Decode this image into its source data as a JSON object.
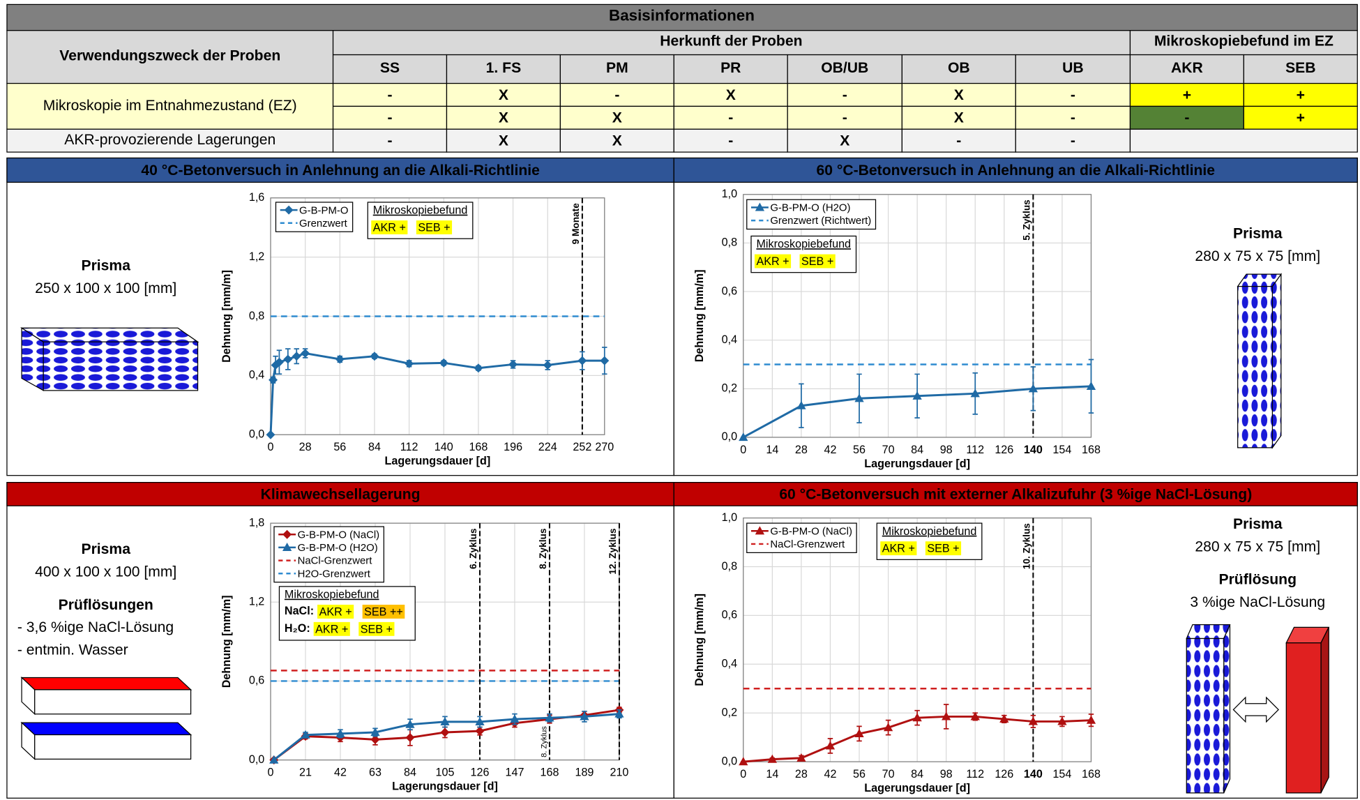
{
  "table": {
    "title": "Basisinformationen",
    "purpose_header": "Verwendungszweck der Proben",
    "origin_header": "Herkunft der Proben",
    "findings_header": "Mikroskopiebefund im EZ",
    "columns": [
      "SS",
      "1. FS",
      "PM",
      "PR",
      "OB/UB",
      "OB",
      "UB",
      "AKR",
      "SEB"
    ],
    "row_groups": [
      {
        "label": "Mikroskopie im Entnahmezustand (EZ)",
        "color": "#ffffcc",
        "rows": [
          [
            "-",
            "X",
            "-",
            "X",
            "-",
            "X",
            "-",
            "+",
            "+"
          ],
          [
            "-",
            "X",
            "X",
            "-",
            "-",
            "X",
            "-",
            "-",
            "+"
          ]
        ],
        "findings_colors": [
          [
            "#ffff00",
            "#ffff00"
          ],
          [
            "#548235",
            "#ffff00"
          ]
        ]
      },
      {
        "label": "AKR-provozierende Lagerungen",
        "color": "#f2f2f2",
        "rows": [
          [
            "-",
            "X",
            "X",
            "-",
            "X",
            "-",
            "-"
          ]
        ]
      }
    ]
  },
  "chart_data": [
    {
      "type": "line",
      "title": "40 °C-Betonversuch in Anlehnung an die Alkali-Richtlinie",
      "band_color": "#2f5597",
      "x_label": "Lagerungsdauer [d]",
      "y_label": "Dehnung [mm/m]",
      "x": [
        0,
        2,
        4,
        7,
        14,
        21,
        28,
        56,
        84,
        112,
        140,
        168,
        196,
        224,
        252,
        270
      ],
      "series": [
        {
          "name": "G-B-PM-O",
          "color": "#1f6aa5",
          "marker": "diamond",
          "values": [
            0,
            0.37,
            0.47,
            0.49,
            0.51,
            0.53,
            0.55,
            0.51,
            0.53,
            0.48,
            0.485,
            0.45,
            0.475,
            0.47,
            0.5,
            0.5
          ],
          "errors": [
            0,
            0.02,
            0.06,
            0.08,
            0.07,
            0.05,
            0.03,
            0.02,
            0.015,
            0.02,
            0.015,
            0.015,
            0.025,
            0.03,
            0.06,
            0.09
          ]
        }
      ],
      "ref_lines": [
        {
          "name": "Grenzwert",
          "value": 0.8,
          "color": "#2e8bd0"
        }
      ],
      "vlines": [
        {
          "x": 252,
          "label": "9 Monate"
        }
      ],
      "xlim": [
        0,
        270
      ],
      "xticks": [
        0,
        28,
        56,
        84,
        112,
        140,
        168,
        196,
        224,
        252,
        270
      ],
      "ylim": [
        0,
        1.6
      ],
      "yticks": [
        {
          "value": 0,
          "label": "0,0"
        },
        {
          "value": 0.4,
          "label": "0,4"
        },
        {
          "value": 0.8,
          "label": "0,8"
        },
        {
          "value": 1.2,
          "label": "1,2"
        },
        {
          "value": 1.6,
          "label": "1,6"
        }
      ],
      "grid": true,
      "findings": {
        "title": "Mikroskopiebefund",
        "rows": [
          {
            "items": [
              {
                "text": "AKR +",
                "color": "#ffff00"
              },
              {
                "text": "SEB +",
                "color": "#ffff00"
              }
            ]
          }
        ]
      },
      "specimen": [
        {
          "text": "Prisma",
          "bold": true
        },
        {
          "text": "250 x 100 x 100 [mm]"
        }
      ]
    },
    {
      "type": "line",
      "title": "60 °C-Betonversuch in Anlehnung an die Alkali-Richtlinie",
      "band_color": "#2f5597",
      "x_label": "Lagerungsdauer [d]",
      "y_label": "Dehnung [mm/m]",
      "x": [
        0,
        28,
        56,
        84,
        112,
        140,
        168
      ],
      "series": [
        {
          "name": "G-B-PM-O (H2O)",
          "color": "#1f6aa5",
          "marker": "triangle",
          "values": [
            0,
            0.13,
            0.16,
            0.17,
            0.18,
            0.2,
            0.21
          ],
          "errors": [
            0,
            0.09,
            0.1,
            0.09,
            0.085,
            0.09,
            0.11
          ]
        }
      ],
      "ref_lines": [
        {
          "name": "Grenzwert (Richtwert)",
          "value": 0.3,
          "color": "#2e8bd0"
        }
      ],
      "vlines": [
        {
          "x": 140,
          "label": "5. Zyklus"
        }
      ],
      "xlim": [
        0,
        168
      ],
      "xticks": [
        0,
        14,
        28,
        42,
        56,
        70,
        84,
        98,
        112,
        126,
        140,
        154,
        168
      ],
      "bold_xticks": [
        140
      ],
      "ylim": [
        0,
        1
      ],
      "yticks": [
        {
          "value": 0,
          "label": "0,0"
        },
        {
          "value": 0.2,
          "label": "0,2"
        },
        {
          "value": 0.4,
          "label": "0,4"
        },
        {
          "value": 0.6,
          "label": "0,6"
        },
        {
          "value": 0.8,
          "label": "0,8"
        },
        {
          "value": 1,
          "label": "1,0"
        }
      ],
      "grid": true,
      "findings": {
        "title": "Mikroskopiebefund",
        "rows": [
          {
            "items": [
              {
                "text": "AKR +",
                "color": "#ffff00"
              },
              {
                "text": "SEB +",
                "color": "#ffff00"
              }
            ]
          }
        ]
      },
      "specimen": [
        {
          "text": "Prisma",
          "bold": true
        },
        {
          "text": "280 x 75 x 75 [mm]"
        }
      ]
    },
    {
      "type": "line",
      "title": "Klimawechsellagerung",
      "band_color": "#c00000",
      "x_label": "Lagerungsdauer [d]",
      "y_label": "Dehnung [mm/m]",
      "x": [
        2,
        21,
        42,
        63,
        84,
        105,
        126,
        147,
        168,
        189,
        210
      ],
      "series": [
        {
          "name": "G-B-PM-O (NaCl)",
          "color": "#b01010",
          "marker": "diamond",
          "values": [
            0,
            0.18,
            0.17,
            0.155,
            0.17,
            0.21,
            0.22,
            0.28,
            0.31,
            0.34,
            0.38
          ],
          "errors": [
            0,
            0.02,
            0.03,
            0.04,
            0.06,
            0.04,
            0.03,
            0.03,
            0.03,
            0.03,
            0.02
          ]
        },
        {
          "name": "G-B-PM-O (H2O)",
          "color": "#1f6aa5",
          "marker": "triangle",
          "values": [
            0,
            0.19,
            0.2,
            0.21,
            0.27,
            0.29,
            0.29,
            0.31,
            0.32,
            0.33,
            0.35
          ],
          "errors": [
            0,
            0.02,
            0.03,
            0.03,
            0.04,
            0.04,
            0.04,
            0.04,
            0.03,
            0.04,
            0.03
          ]
        }
      ],
      "ref_lines": [
        {
          "name": "NaCl-Grenzwert",
          "value": 0.68,
          "color": "#d02020"
        },
        {
          "name": "H2O-Grenzwert",
          "value": 0.6,
          "color": "#2e8bd0"
        }
      ],
      "vlines": [
        {
          "x": 126,
          "label": "6. Zyklus"
        },
        {
          "x": 168,
          "label": "8. Zyklus",
          "bottom_label": "8. Zyklus"
        },
        {
          "x": 210,
          "label": "12. Zyklus"
        }
      ],
      "xlim": [
        0,
        210
      ],
      "xticks": [
        0,
        21,
        42,
        63,
        84,
        105,
        126,
        147,
        168,
        189,
        210
      ],
      "ylim": [
        0,
        1.8
      ],
      "yticks": [
        {
          "value": 0,
          "label": "0,0"
        },
        {
          "value": 0.6,
          "label": "0,6"
        },
        {
          "value": 1.2,
          "label": "1,2"
        },
        {
          "value": 1.8,
          "label": "1,8"
        }
      ],
      "grid": true,
      "findings": {
        "title": "Mikroskopiebefund",
        "rows": [
          {
            "label": "NaCl:",
            "label_color": "#c00000",
            "items": [
              {
                "text": "AKR +",
                "color": "#ffff00"
              },
              {
                "text": "SEB ++",
                "color": "#ffc000"
              }
            ]
          },
          {
            "label": "H₂O:",
            "label_color": "#1f5f9f",
            "items": [
              {
                "text": "AKR +",
                "color": "#ffff00"
              },
              {
                "text": "SEB +",
                "color": "#ffff00"
              }
            ]
          }
        ]
      },
      "specimen": [
        {
          "text": "Prisma",
          "bold": true
        },
        {
          "text": "400 x 100 x 100 [mm]"
        },
        {
          "text": "Prüflösungen",
          "bold": true
        },
        {
          "text": "- 3,6 %ige NaCl-Lösung",
          "align": "left"
        },
        {
          "text": "- entmin. Wasser",
          "align": "left"
        }
      ]
    },
    {
      "type": "line",
      "title": "60 °C-Betonversuch mit externer Alkalizufuhr (3 %ige NaCl-Lösung)",
      "band_color": "#c00000",
      "x_label": "Lagerungsdauer [d]",
      "y_label": "Dehnung [mm/m]",
      "x": [
        0,
        14,
        28,
        42,
        56,
        70,
        84,
        98,
        112,
        126,
        140,
        154,
        168
      ],
      "series": [
        {
          "name": "G-B-PM-O (NaCl)",
          "color": "#b01010",
          "marker": "triangle",
          "values": [
            0,
            0.01,
            0.015,
            0.065,
            0.115,
            0.14,
            0.18,
            0.185,
            0.185,
            0.175,
            0.165,
            0.165,
            0.17
          ],
          "errors": [
            0,
            0.005,
            0.01,
            0.03,
            0.03,
            0.03,
            0.03,
            0.05,
            0.015,
            0.015,
            0.025,
            0.02,
            0.025
          ]
        }
      ],
      "ref_lines": [
        {
          "name": "NaCl-Grenzwert",
          "value": 0.3,
          "color": "#d02020"
        }
      ],
      "vlines": [
        {
          "x": 140,
          "label": "10. Zyklus"
        }
      ],
      "xlim": [
        0,
        168
      ],
      "xticks": [
        0,
        14,
        28,
        42,
        56,
        70,
        84,
        98,
        112,
        126,
        140,
        154,
        168
      ],
      "bold_xticks": [
        140
      ],
      "ylim": [
        0,
        1
      ],
      "yticks": [
        {
          "value": 0,
          "label": "0,0"
        },
        {
          "value": 0.2,
          "label": "0,2"
        },
        {
          "value": 0.4,
          "label": "0,4"
        },
        {
          "value": 0.6,
          "label": "0,6"
        },
        {
          "value": 0.8,
          "label": "0,8"
        },
        {
          "value": 1,
          "label": "1,0"
        }
      ],
      "grid": true,
      "findings": {
        "title": "Mikroskopiebefund",
        "rows": [
          {
            "items": [
              {
                "text": "AKR +",
                "color": "#ffff00"
              },
              {
                "text": "SEB +",
                "color": "#ffff00"
              }
            ]
          }
        ]
      },
      "specimen": [
        {
          "text": "Prisma",
          "bold": true
        },
        {
          "text": "280 x 75 x 75 [mm]"
        },
        {
          "text": "Prüflösung",
          "bold": true
        },
        {
          "text": "3 %ige NaCl-Lösung"
        }
      ]
    }
  ]
}
